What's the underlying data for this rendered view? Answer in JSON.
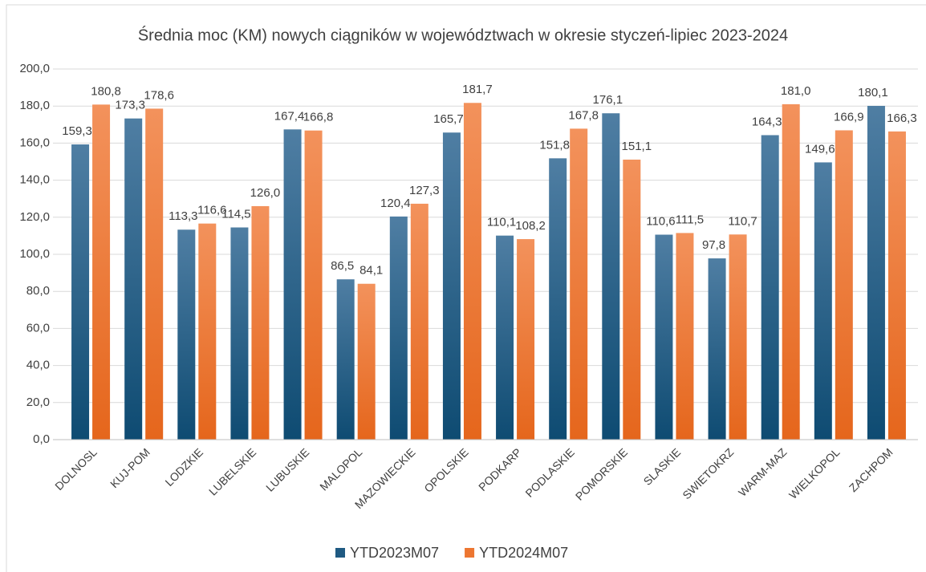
{
  "chart_data": {
    "type": "bar",
    "title": "Średnia moc (KM) nowych ciągników w województwach w okresie styczeń-lipiec 2023-2024",
    "categories": [
      "DOLNOSL",
      "KUJ-POM",
      "LODZKIE",
      "LUBELSKIE",
      "LUBUSKIE",
      "MALOPOL",
      "MAZOWIECKIE",
      "OPOLSKIE",
      "PODKARP",
      "PODLASKIE",
      "POMORSKIE",
      "SLASKIE",
      "SWIETOKRZ",
      "WARM-MAZ",
      "WIELKOPOL",
      "ZACHPOM"
    ],
    "series": [
      {
        "name": "YTD2023M07",
        "color": "#1f5a82",
        "values": [
          159.3,
          173.3,
          113.3,
          114.5,
          167.4,
          86.5,
          120.4,
          165.7,
          110.1,
          151.8,
          176.1,
          110.6,
          97.8,
          164.3,
          149.6,
          180.1
        ],
        "value_labels": [
          "159,3",
          "173,3",
          "113,3",
          "114,5",
          "167,4",
          "86,5",
          "120,4",
          "165,7",
          "110,1",
          "151,8",
          "176,1",
          "110,6",
          "97,8",
          "164,3",
          "149,6",
          "180,1"
        ]
      },
      {
        "name": "YTD2024M07",
        "color": "#ed7631",
        "values": [
          180.8,
          178.6,
          116.6,
          126.0,
          166.8,
          84.1,
          127.3,
          181.7,
          108.2,
          167.8,
          151.1,
          111.5,
          110.7,
          181.0,
          166.9,
          166.3
        ],
        "value_labels": [
          "180,8",
          "178,6",
          "116,6",
          "126,0",
          "166,8",
          "84,1",
          "127,3",
          "181,7",
          "108,2",
          "167,8",
          "151,1",
          "111,5",
          "110,7",
          "181,0",
          "166,9",
          "166,3"
        ]
      }
    ],
    "ylim": [
      0,
      200
    ],
    "yticks": [
      {
        "value": 0,
        "label": "0,0"
      },
      {
        "value": 20,
        "label": "20,0"
      },
      {
        "value": 40,
        "label": "40,0"
      },
      {
        "value": 60,
        "label": "60,0"
      },
      {
        "value": 80,
        "label": "80,0"
      },
      {
        "value": 100,
        "label": "100,0"
      },
      {
        "value": 120,
        "label": "120,0"
      },
      {
        "value": 140,
        "label": "140,0"
      },
      {
        "value": 160,
        "label": "160,0"
      },
      {
        "value": 180,
        "label": "180,0"
      },
      {
        "value": 200,
        "label": "200,0"
      }
    ],
    "grid": true,
    "legend": "bottom"
  }
}
